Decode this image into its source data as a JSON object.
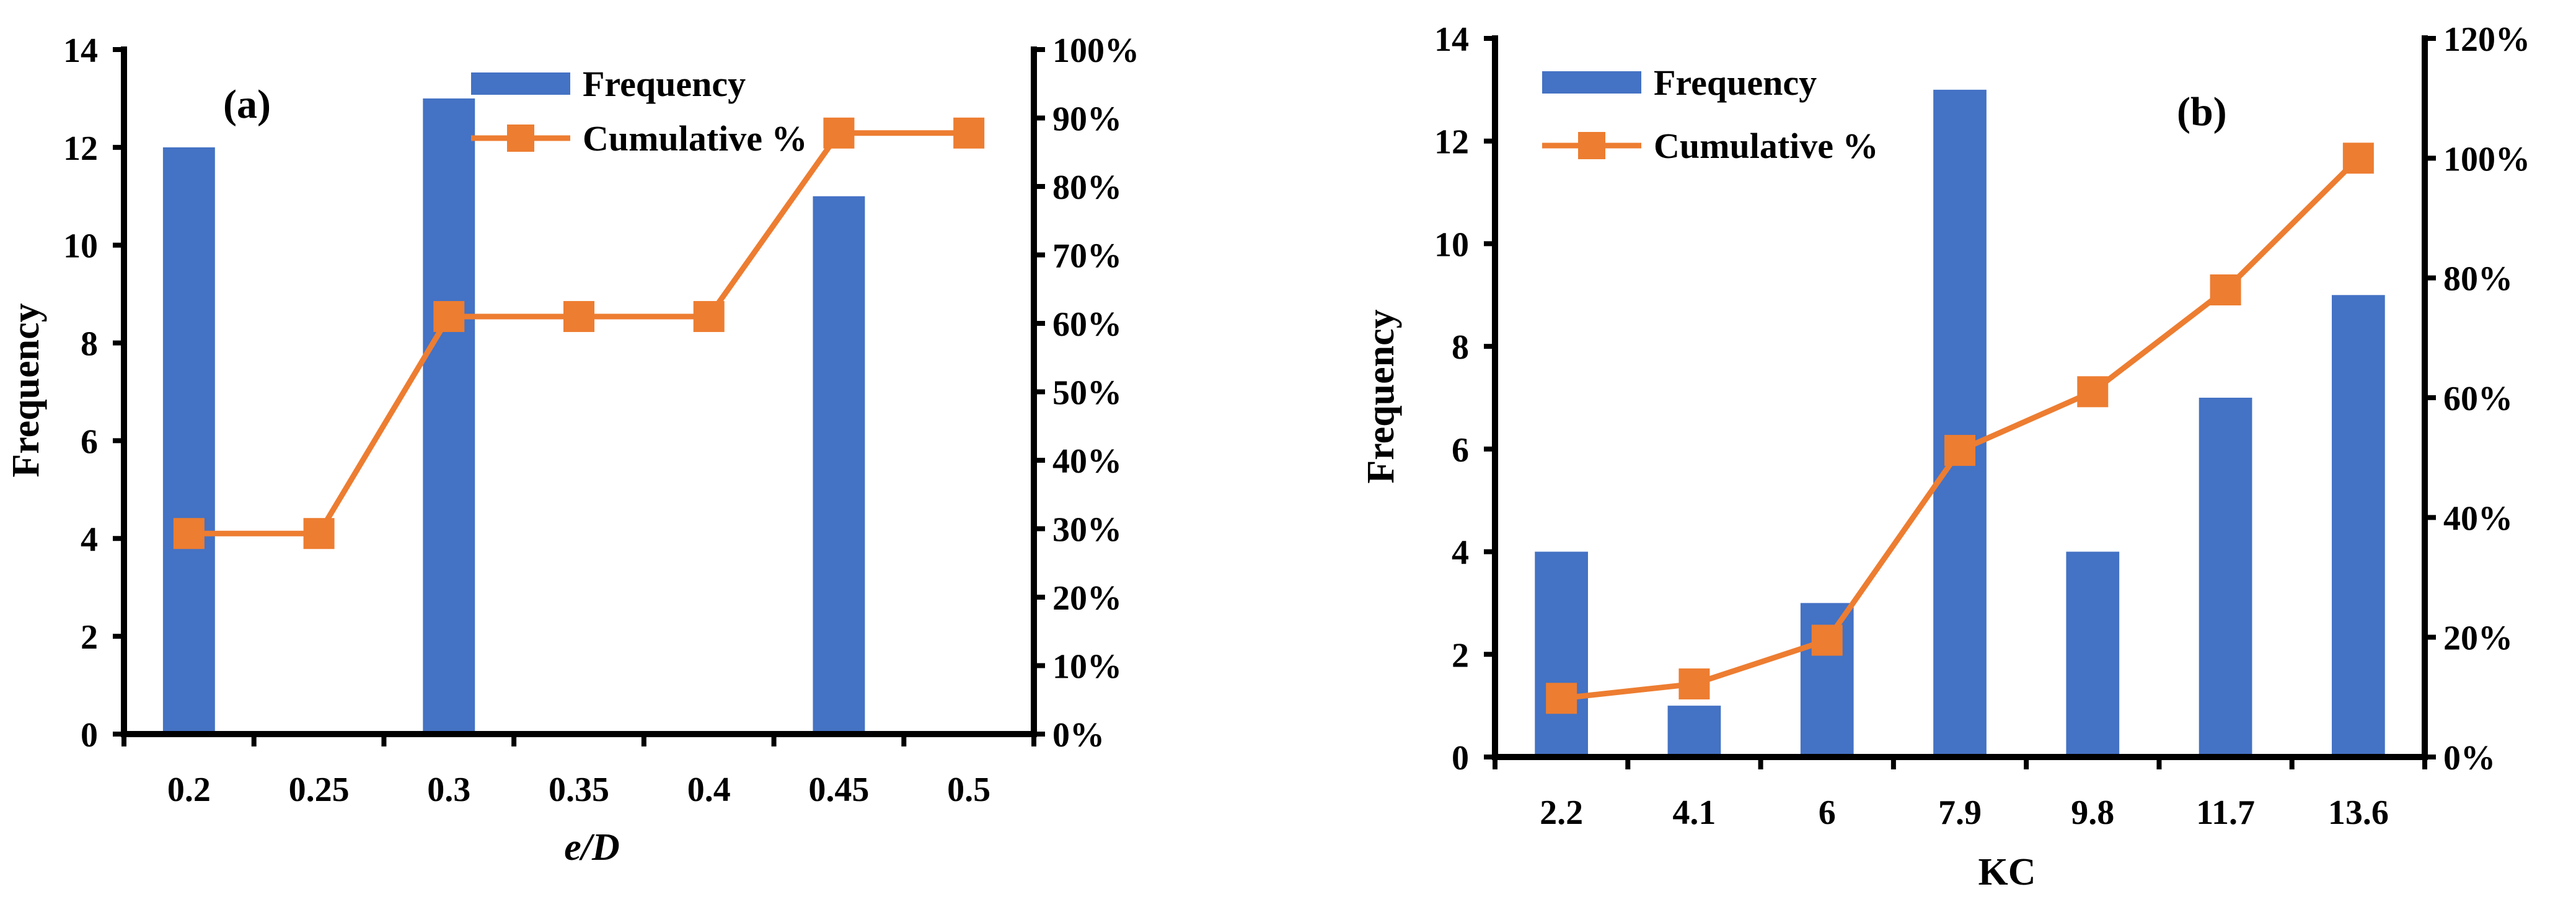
{
  "colors": {
    "bar": "#4472C4",
    "line": "#ED7D31",
    "axis": "#000000"
  },
  "chart_data": [
    {
      "type": "bar",
      "panel_label": "(a)",
      "xlabel": "e/D",
      "ylabel": "Frequency",
      "categories": [
        "0.2",
        "0.25",
        "0.3",
        "0.35",
        "0.4",
        "0.45",
        "0.5"
      ],
      "ylim": [
        0,
        14
      ],
      "yticks": [
        0,
        2,
        4,
        6,
        8,
        10,
        12,
        14
      ],
      "y2lim": [
        0,
        100
      ],
      "y2ticks": [
        "0%",
        "10%",
        "20%",
        "30%",
        "40%",
        "50%",
        "60%",
        "70%",
        "80%",
        "90%",
        "100%"
      ],
      "legend": "top-center",
      "series": [
        {
          "name": "Frequency",
          "kind": "bar",
          "values": [
            12,
            0,
            13,
            0,
            0,
            11,
            0
          ]
        },
        {
          "name": "Cumulative %",
          "kind": "line",
          "axis": "right",
          "values": [
            29.3,
            29.3,
            61.0,
            61.0,
            61.0,
            87.8,
            87.8
          ]
        }
      ]
    },
    {
      "type": "bar",
      "panel_label": "(b)",
      "xlabel": "KC",
      "ylabel": "Frequency",
      "categories": [
        "2.2",
        "4.1",
        "6",
        "7.9",
        "9.8",
        "11.7",
        "13.6"
      ],
      "ylim": [
        0,
        14
      ],
      "yticks": [
        0,
        2,
        4,
        6,
        8,
        10,
        12,
        14
      ],
      "y2lim": [
        0,
        120
      ],
      "y2ticks": [
        "0%",
        "20%",
        "40%",
        "60%",
        "80%",
        "100%",
        "120%"
      ],
      "legend": "top-left",
      "series": [
        {
          "name": "Frequency",
          "kind": "bar",
          "values": [
            4,
            1,
            3,
            13,
            4,
            7,
            9
          ]
        },
        {
          "name": "Cumulative %",
          "kind": "line",
          "axis": "right",
          "values": [
            9.8,
            12.2,
            19.5,
            51.2,
            61.0,
            78.0,
            100.0
          ]
        }
      ]
    }
  ]
}
